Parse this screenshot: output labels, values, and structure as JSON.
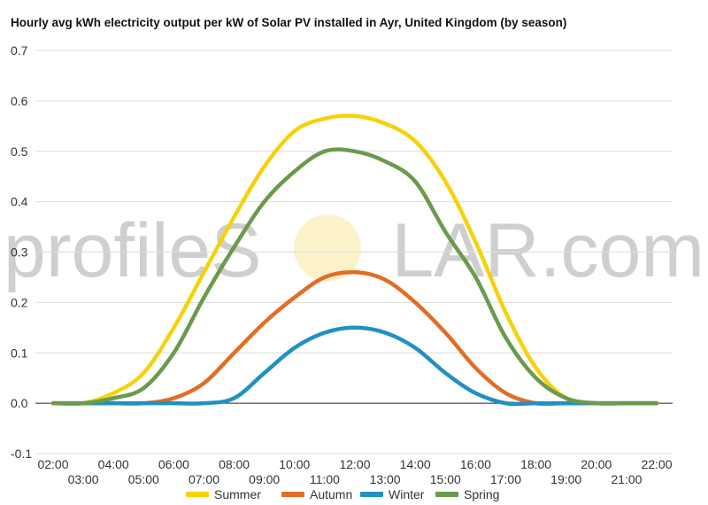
{
  "chart_data": {
    "type": "line",
    "title": "Hourly avg kWh electricity output per kW of Solar PV installed in Ayr, United Kingdom (by season)",
    "xlabel": "",
    "ylabel": "",
    "x_ticks": [
      "02:00",
      "03:00",
      "04:00",
      "05:00",
      "06:00",
      "07:00",
      "08:00",
      "09:00",
      "10:00",
      "11:00",
      "12:00",
      "13:00",
      "14:00",
      "15:00",
      "16:00",
      "17:00",
      "18:00",
      "19:00",
      "20:00",
      "21:00",
      "22:00"
    ],
    "ylim": [
      -0.1,
      0.7
    ],
    "y_ticks": [
      "-0.1",
      "0.0",
      "0.1",
      "0.2",
      "0.3",
      "0.4",
      "0.5",
      "0.6",
      "0.7"
    ],
    "grid": true,
    "legend_position": "bottom",
    "series": [
      {
        "name": "Summer",
        "color": "#f5d20a",
        "values": [
          0,
          0,
          0.02,
          0.06,
          0.15,
          0.26,
          0.37,
          0.47,
          0.54,
          0.565,
          0.57,
          0.555,
          0.52,
          0.44,
          0.32,
          0.18,
          0.07,
          0.01,
          0,
          0,
          0
        ]
      },
      {
        "name": "Autumn",
        "color": "#e26d26",
        "values": [
          0,
          0,
          0,
          0,
          0.01,
          0.04,
          0.1,
          0.16,
          0.21,
          0.25,
          0.26,
          0.245,
          0.2,
          0.14,
          0.07,
          0.02,
          0,
          0,
          0,
          0,
          0
        ]
      },
      {
        "name": "Winter",
        "color": "#1f91c2",
        "values": [
          0,
          0,
          0,
          0,
          0,
          0,
          0.01,
          0.06,
          0.11,
          0.14,
          0.15,
          0.14,
          0.11,
          0.06,
          0.02,
          0,
          0,
          0,
          0,
          0,
          0
        ]
      },
      {
        "name": "Spring",
        "color": "#6a9a4d",
        "values": [
          0,
          0,
          0.01,
          0.03,
          0.1,
          0.21,
          0.31,
          0.4,
          0.46,
          0.5,
          0.5,
          0.48,
          0.44,
          0.34,
          0.25,
          0.13,
          0.05,
          0.01,
          0,
          0,
          0
        ]
      }
    ]
  },
  "watermark": {
    "left": "profileS",
    "right": "LAR.com"
  }
}
